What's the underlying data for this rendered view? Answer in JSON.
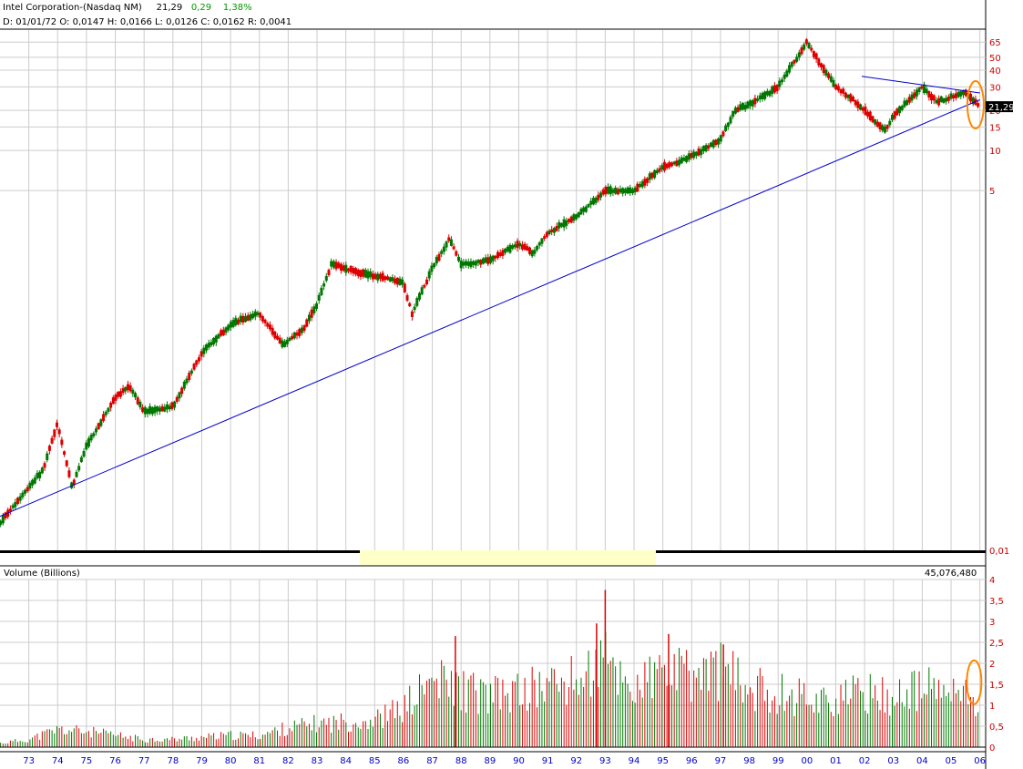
{
  "header": {
    "title": "Intel Corporation-(Nasdaq NM)",
    "last": "21,29",
    "change": "0,29",
    "change_pct": "1,38%",
    "ohlc_line": "D: 01/01/72   O: 0,0147   H: 0,0166   L: 0,0126   C: 0,0162   R: 0,0041"
  },
  "volume_panel": {
    "title": "Volume (Billions)",
    "last_volume": "45,076,480"
  },
  "colors": {
    "up": "#007700",
    "down": "#dd0000",
    "trendline": "#0000cc",
    "annotation": "#ff8800",
    "grid": "#cccccc",
    "axis_text": "#cc0000",
    "x_axis_text": "#0000cc",
    "panel_bg": "#ffffc8"
  },
  "chart_data": [
    {
      "type": "candlestick",
      "title": "Intel Corporation-(Nasdaq NM)",
      "y_scale": "log",
      "ylim": [
        0.01,
        80
      ],
      "y_ticks": [
        0.01,
        5,
        10,
        15,
        20,
        30,
        40,
        50,
        65
      ],
      "y_tick_labels": [
        "0,01",
        "5",
        "10",
        "15",
        "20",
        "30",
        "40",
        "50",
        "65"
      ],
      "last_price_label": "21,29",
      "x_tick_labels": [
        "73",
        "74",
        "75",
        "76",
        "77",
        "78",
        "79",
        "80",
        "81",
        "82",
        "83",
        "84",
        "85",
        "86",
        "87",
        "88",
        "89",
        "90",
        "91",
        "92",
        "93",
        "94",
        "95",
        "96",
        "97",
        "98",
        "99",
        "00",
        "01",
        "02",
        "03",
        "04",
        "05",
        "06"
      ],
      "x": [
        1972.0,
        1973.0,
        1973.5,
        1974.0,
        1974.5,
        1975.0,
        1976.0,
        1976.5,
        1977.0,
        1978.0,
        1979.0,
        1980.0,
        1981.0,
        1981.8,
        1982.5,
        1983.0,
        1983.5,
        1984.5,
        1985.5,
        1986.0,
        1986.3,
        1987.0,
        1987.6,
        1988.0,
        1989.0,
        1990.0,
        1990.5,
        1991.0,
        1992.0,
        1993.0,
        1994.0,
        1995.0,
        1996.0,
        1997.0,
        1997.5,
        1998.0,
        1999.0,
        2000.0,
        2000.6,
        2001.0,
        2001.5,
        2002.0,
        2002.7,
        2003.0,
        2004.0,
        2004.5,
        2005.0,
        2005.5,
        2006.0
      ],
      "close": [
        0.016,
        0.03,
        0.04,
        0.09,
        0.03,
        0.06,
        0.14,
        0.17,
        0.11,
        0.12,
        0.3,
        0.5,
        0.6,
        0.35,
        0.45,
        0.7,
        1.4,
        1.2,
        1.1,
        1.0,
        0.6,
        1.3,
        2.2,
        1.4,
        1.5,
        2.0,
        1.7,
        2.4,
        3.2,
        5.0,
        5.0,
        7.5,
        9.0,
        12.0,
        20.0,
        22.0,
        30.0,
        65.0,
        40.0,
        30.0,
        25.0,
        20.0,
        14.0,
        18.0,
        30.0,
        23.0,
        25.0,
        27.0,
        21.29
      ],
      "trendlines": [
        {
          "from": [
            1972.0,
            0.018
          ],
          "to": [
            2006.0,
            24.0
          ]
        },
        {
          "from": [
            2001.9,
            36.0
          ],
          "to": [
            2006.0,
            27.0
          ]
        }
      ],
      "annotations": [
        "orange ellipse around last price (2006)"
      ]
    },
    {
      "type": "bar",
      "title": "Volume (Billions)",
      "ylabel": "Volume (Billions)",
      "ylim": [
        0,
        4
      ],
      "y_ticks": [
        0,
        0.5,
        1,
        1.5,
        2,
        2.5,
        3,
        3.5,
        4
      ],
      "y_tick_labels": [
        "0",
        "0,5",
        "1",
        "1,5",
        "2",
        "2,5",
        "3",
        "3,5",
        "4"
      ],
      "x": [
        1972,
        1973,
        1974,
        1975,
        1976,
        1977,
        1978,
        1979,
        1980,
        1981,
        1982,
        1983,
        1984,
        1985,
        1986,
        1987,
        1988,
        1989,
        1990,
        1991,
        1992,
        1993,
        1994,
        1995,
        1996,
        1997,
        1998,
        1999,
        2000,
        2001,
        2002,
        2003,
        2004,
        2005,
        2006
      ],
      "values": [
        0.1,
        0.2,
        0.45,
        0.4,
        0.3,
        0.2,
        0.2,
        0.25,
        0.3,
        0.3,
        0.5,
        0.6,
        0.65,
        0.7,
        1.0,
        1.7,
        1.5,
        1.3,
        1.4,
        1.6,
        1.7,
        2.2,
        1.5,
        1.9,
        1.8,
        2.0,
        1.5,
        1.4,
        1.3,
        1.2,
        1.4,
        1.3,
        1.5,
        1.4,
        1.2
      ],
      "spikes": [
        {
          "x": 1987.8,
          "value": 2.65
        },
        {
          "x": 1993.0,
          "value": 3.75
        },
        {
          "x": 1992.7,
          "value": 2.95
        },
        {
          "x": 1995.2,
          "value": 2.7
        },
        {
          "x": 1997.1,
          "value": 2.45
        }
      ],
      "annotations": [
        "orange ellipse near 2006 volume"
      ]
    }
  ]
}
